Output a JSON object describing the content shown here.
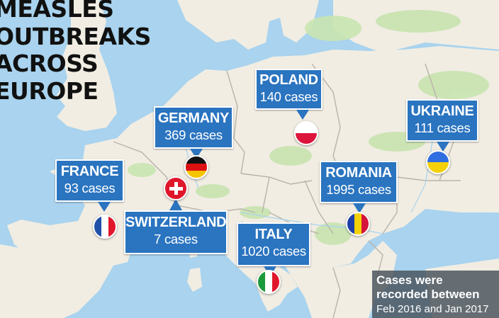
{
  "title": {
    "line1": "MEASLES",
    "line2": "OUTBREAKS",
    "line3": "ACROSS",
    "line4": "EUROPE"
  },
  "countries": [
    {
      "id": "poland",
      "name": "POLAND",
      "cases": "140 cases",
      "flag": "flag-poland"
    },
    {
      "id": "ukraine",
      "name": "UKRAINE",
      "cases": "111 cases",
      "flag": "flag-ukraine"
    },
    {
      "id": "germany",
      "name": "GERMANY",
      "cases": "369 cases",
      "flag": "flag-germany"
    },
    {
      "id": "france",
      "name": "FRANCE",
      "cases": "93 cases",
      "flag": "flag-france"
    },
    {
      "id": "romania",
      "name": "ROMANIA",
      "cases": "1995 cases",
      "flag": "flag-romania"
    },
    {
      "id": "switzerland",
      "name": "SWITZERLAND",
      "cases": "7 cases",
      "flag": "flag-switzerland"
    },
    {
      "id": "italy",
      "name": "ITALY",
      "cases": "1020 cases",
      "flag": "flag-italy"
    }
  ],
  "note": {
    "line1": "Cases were",
    "line2": "recorded between",
    "line3": "Feb 2016 and Jan 2017"
  },
  "colors": {
    "sea": "#a9d3ee",
    "land": "#f1ede3",
    "border": "#b9b3a9",
    "label": "#2a74c0",
    "green": "#c9e4b0"
  }
}
